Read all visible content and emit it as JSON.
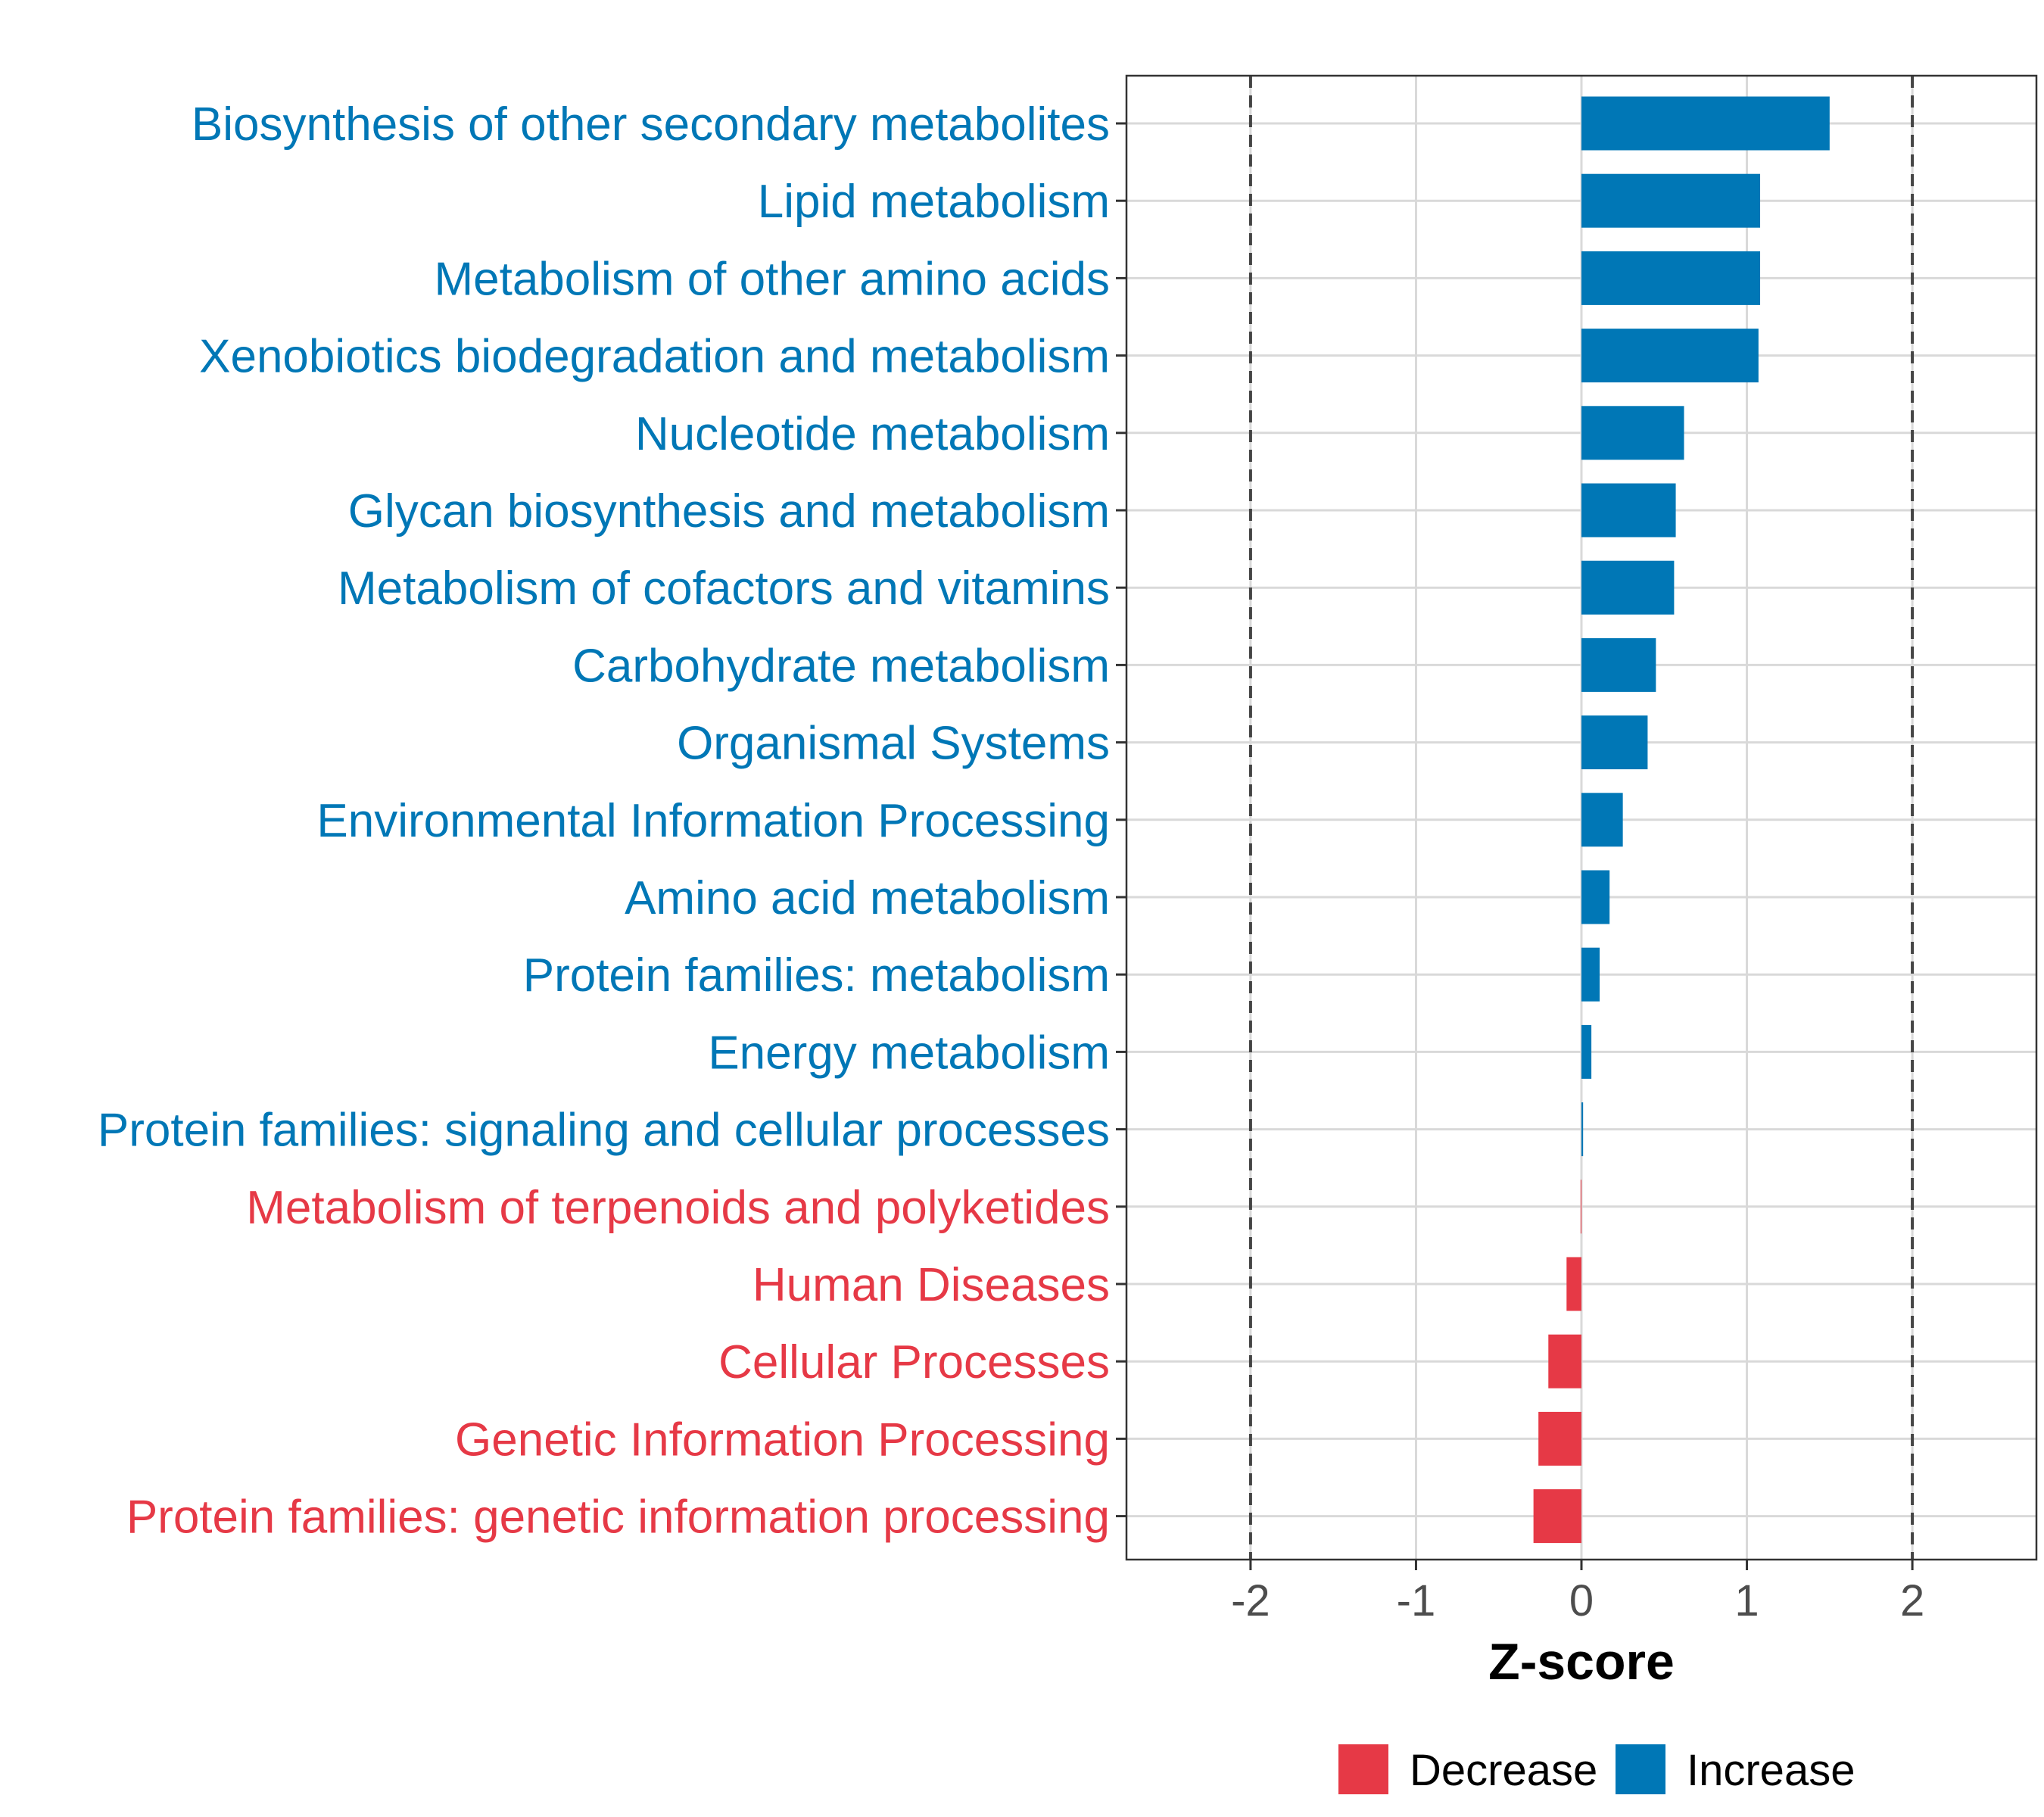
{
  "chart_data": {
    "type": "bar",
    "orientation": "horizontal",
    "categories": [
      "Biosynthesis of other secondary metabolites",
      "Lipid metabolism",
      "Metabolism of other amino acids",
      "Xenobiotics biodegradation and metabolism",
      "Nucleotide metabolism",
      "Glycan biosynthesis and metabolism",
      "Metabolism of cofactors and vitamins",
      "Carbohydrate metabolism",
      "Organismal Systems",
      "Environmental Information Processing",
      "Amino acid metabolism",
      "Protein families: metabolism",
      "Energy metabolism",
      "Protein families: signaling and cellular processes",
      "Metabolism of terpenoids and polyketides",
      "Human Diseases",
      "Cellular Processes",
      "Genetic Information Processing",
      "Protein families: genetic information processing"
    ],
    "values": [
      1.5,
      1.08,
      1.08,
      1.07,
      0.62,
      0.57,
      0.56,
      0.45,
      0.4,
      0.25,
      0.17,
      0.11,
      0.06,
      0.01,
      -0.005,
      -0.09,
      -0.2,
      -0.26,
      -0.29
    ],
    "groups": [
      "Increase",
      "Increase",
      "Increase",
      "Increase",
      "Increase",
      "Increase",
      "Increase",
      "Increase",
      "Increase",
      "Increase",
      "Increase",
      "Increase",
      "Increase",
      "Increase",
      "Decrease",
      "Decrease",
      "Decrease",
      "Decrease",
      "Decrease"
    ],
    "xlabel": "Z-score",
    "ylabel": "",
    "xlim": [
      -2.75,
      2.75
    ],
    "xticks": [
      -2,
      -1,
      0,
      1,
      2
    ],
    "xtick_labels": [
      "-2",
      "-1",
      "0",
      "1",
      "2"
    ],
    "reference_lines": [
      -2,
      2
    ],
    "grid": true,
    "legend_position": "bottom",
    "legend": [
      {
        "name": "Decrease",
        "color": "#E63946"
      },
      {
        "name": "Increase",
        "color": "#0077B6"
      }
    ],
    "colors": {
      "Decrease": "#E63946",
      "Increase": "#0077B6"
    }
  }
}
